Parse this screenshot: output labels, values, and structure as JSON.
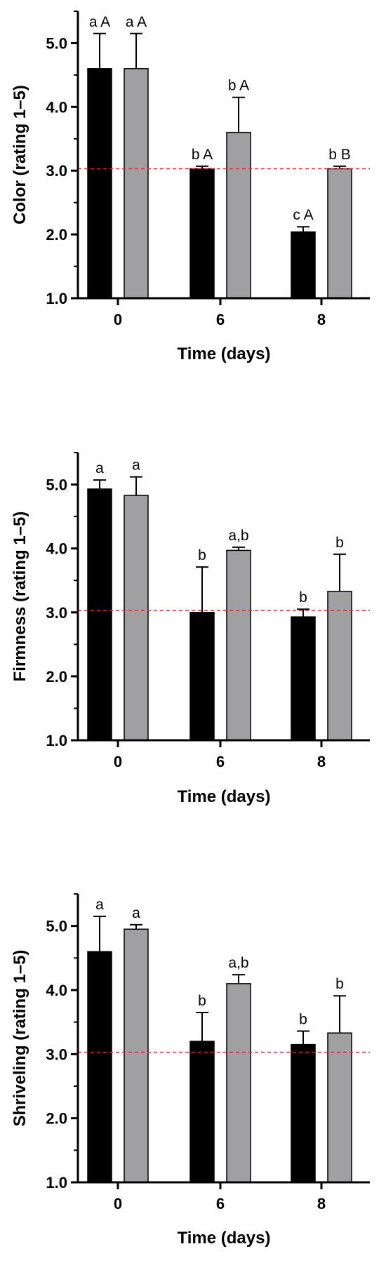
{
  "chart_data": [
    {
      "type": "bar",
      "ylabel": "Color (rating 1–5)",
      "xlabel": "Time (days)",
      "categories": [
        "0",
        "6",
        "8"
      ],
      "ylim": [
        1.0,
        5.5
      ],
      "yticks": [
        "1.0",
        "2.0",
        "3.0",
        "4.0",
        "5.0"
      ],
      "reference_line": 3.03,
      "series": [
        {
          "color": "#000000",
          "values": [
            4.6,
            3.03,
            2.04
          ],
          "errors": [
            0.55,
            0.04,
            0.08
          ],
          "labels": [
            "a A",
            "b A",
            "c A"
          ]
        },
        {
          "color": "#a0a0a2",
          "values": [
            4.6,
            3.6,
            3.03
          ],
          "errors": [
            0.55,
            0.55,
            0.04
          ],
          "labels": [
            "a A",
            "b A",
            "b B"
          ]
        }
      ]
    },
    {
      "type": "bar",
      "ylabel": "Firmness (rating 1–5)",
      "xlabel": "Time (days)",
      "categories": [
        "0",
        "6",
        "8"
      ],
      "ylim": [
        1.0,
        5.5
      ],
      "yticks": [
        "1.0",
        "2.0",
        "3.0",
        "4.0",
        "5.0"
      ],
      "reference_line": 3.03,
      "series": [
        {
          "color": "#000000",
          "values": [
            4.93,
            3.0,
            2.93
          ],
          "errors": [
            0.14,
            0.71,
            0.12
          ],
          "labels": [
            "a",
            "b",
            "b"
          ]
        },
        {
          "color": "#a0a0a2",
          "values": [
            4.83,
            3.97,
            3.33
          ],
          "errors": [
            0.29,
            0.05,
            0.58
          ],
          "labels": [
            "a",
            "a,b",
            "b"
          ]
        }
      ]
    },
    {
      "type": "bar",
      "ylabel": "Shriveling (rating 1–5)",
      "xlabel": "Time (days)",
      "categories": [
        "0",
        "6",
        "8"
      ],
      "ylim": [
        1.0,
        5.5
      ],
      "yticks": [
        "1.0",
        "2.0",
        "3.0",
        "4.0",
        "5.0"
      ],
      "reference_line": 3.03,
      "series": [
        {
          "color": "#000000",
          "values": [
            4.6,
            3.2,
            3.15
          ],
          "errors": [
            0.55,
            0.45,
            0.21
          ],
          "labels": [
            "a",
            "b",
            "b"
          ]
        },
        {
          "color": "#a0a0a2",
          "values": [
            4.95,
            4.1,
            3.33
          ],
          "errors": [
            0.07,
            0.14,
            0.58
          ],
          "labels": [
            "a",
            "a,b",
            "b"
          ]
        }
      ]
    }
  ]
}
